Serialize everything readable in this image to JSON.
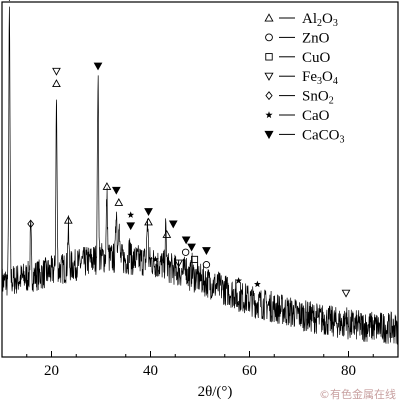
{
  "chart_data": {
    "type": "line",
    "title": "",
    "xlabel": "2θ/(°)",
    "ylabel": "",
    "xlim": [
      10,
      90
    ],
    "x_ticks": [
      20,
      40,
      60,
      80
    ],
    "y_ticks_shown": false,
    "grid": false,
    "legend_placement": "top-right",
    "series": [
      {
        "baseline": [
          [
            10,
            0.21
          ],
          [
            20,
            0.24
          ],
          [
            30,
            0.28
          ],
          [
            40,
            0.27
          ],
          [
            50,
            0.22
          ],
          [
            60,
            0.16
          ],
          [
            70,
            0.12
          ],
          [
            80,
            0.09
          ],
          [
            90,
            0.08
          ]
        ],
        "peaks": [
          {
            "x": 11.5,
            "y": 0.97
          },
          {
            "x": 15.8,
            "y": 0.35
          },
          {
            "x": 21.0,
            "y": 0.73
          },
          {
            "x": 23.4,
            "y": 0.36
          },
          {
            "x": 29.4,
            "y": 0.78
          },
          {
            "x": 31.2,
            "y": 0.45
          },
          {
            "x": 33.1,
            "y": 0.43
          },
          {
            "x": 33.6,
            "y": 0.4
          },
          {
            "x": 35.8,
            "y": 0.31
          },
          {
            "x": 39.4,
            "y": 0.39
          },
          {
            "x": 43.1,
            "y": 0.36
          },
          {
            "x": 47.1,
            "y": 0.27
          },
          {
            "x": 48.4,
            "y": 0.25
          },
          {
            "x": 57.6,
            "y": 0.16
          },
          {
            "x": 61.4,
            "y": 0.15
          },
          {
            "x": 79.5,
            "y": 0.12
          }
        ]
      }
    ],
    "legend": [
      {
        "symbol": "triangle-up-open",
        "label_main": "Al",
        "label_parts": [
          [
            "Al",
            ""
          ],
          [
            "2",
            "sub"
          ],
          [
            "O",
            ""
          ],
          [
            "3",
            "sub"
          ]
        ]
      },
      {
        "symbol": "circle-open",
        "label_parts": [
          [
            "ZnO",
            ""
          ]
        ]
      },
      {
        "symbol": "square-open",
        "label_parts": [
          [
            "CuO",
            ""
          ]
        ]
      },
      {
        "symbol": "triangle-down-open",
        "label_parts": [
          [
            "Fe",
            ""
          ],
          [
            "3",
            "sub"
          ],
          [
            "O",
            ""
          ],
          [
            "4",
            "sub"
          ]
        ]
      },
      {
        "symbol": "diamond-open",
        "label_parts": [
          [
            "SnO",
            ""
          ],
          [
            "2",
            "sub"
          ]
        ]
      },
      {
        "symbol": "star",
        "label_parts": [
          [
            "CaO",
            ""
          ]
        ]
      },
      {
        "symbol": "triangle-down-filled",
        "label_parts": [
          [
            "CaCO",
            ""
          ],
          [
            "3",
            "sub"
          ]
        ]
      }
    ],
    "peak_markers": [
      {
        "x": 11.5,
        "y": 1.05,
        "symbol": "circle-open"
      },
      {
        "x": 11.5,
        "y": 1.015,
        "symbol": "triangle-down-open"
      },
      {
        "x": 15.8,
        "y": 0.375,
        "symbol": "diamond-open"
      },
      {
        "x": 21.0,
        "y": 0.805,
        "symbol": "triangle-down-open"
      },
      {
        "x": 21.0,
        "y": 0.77,
        "symbol": "triangle-up-open"
      },
      {
        "x": 23.4,
        "y": 0.385,
        "symbol": "triangle-up-open"
      },
      {
        "x": 29.4,
        "y": 0.82,
        "symbol": "triangle-down-filled"
      },
      {
        "x": 31.2,
        "y": 0.48,
        "symbol": "triangle-up-open"
      },
      {
        "x": 33.1,
        "y": 0.47,
        "symbol": "triangle-down-filled"
      },
      {
        "x": 33.6,
        "y": 0.435,
        "symbol": "triangle-up-open"
      },
      {
        "x": 36.0,
        "y": 0.4,
        "symbol": "star"
      },
      {
        "x": 36.0,
        "y": 0.37,
        "symbol": "triangle-down-filled"
      },
      {
        "x": 39.6,
        "y": 0.41,
        "symbol": "triangle-down-filled"
      },
      {
        "x": 39.6,
        "y": 0.38,
        "symbol": "triangle-up-open"
      },
      {
        "x": 44.6,
        "y": 0.375,
        "symbol": "triangle-down-filled"
      },
      {
        "x": 43.3,
        "y": 0.345,
        "symbol": "triangle-up-open"
      },
      {
        "x": 41.0,
        "y": 0.275,
        "symbol": "star"
      },
      {
        "x": 47.2,
        "y": 0.33,
        "symbol": "triangle-down-filled"
      },
      {
        "x": 48.3,
        "y": 0.31,
        "symbol": "triangle-down-filled"
      },
      {
        "x": 51.3,
        "y": 0.3,
        "symbol": "triangle-down-filled"
      },
      {
        "x": 47.1,
        "y": 0.295,
        "symbol": "circle-open"
      },
      {
        "x": 45.7,
        "y": 0.265,
        "symbol": "triangle-down-open"
      },
      {
        "x": 48.9,
        "y": 0.275,
        "symbol": "square-open"
      },
      {
        "x": 51.3,
        "y": 0.26,
        "symbol": "circle-open"
      },
      {
        "x": 57.8,
        "y": 0.215,
        "symbol": "star"
      },
      {
        "x": 61.6,
        "y": 0.205,
        "symbol": "star"
      },
      {
        "x": 79.5,
        "y": 0.18,
        "symbol": "triangle-down-open"
      }
    ]
  },
  "watermark": "©有色金属在线"
}
